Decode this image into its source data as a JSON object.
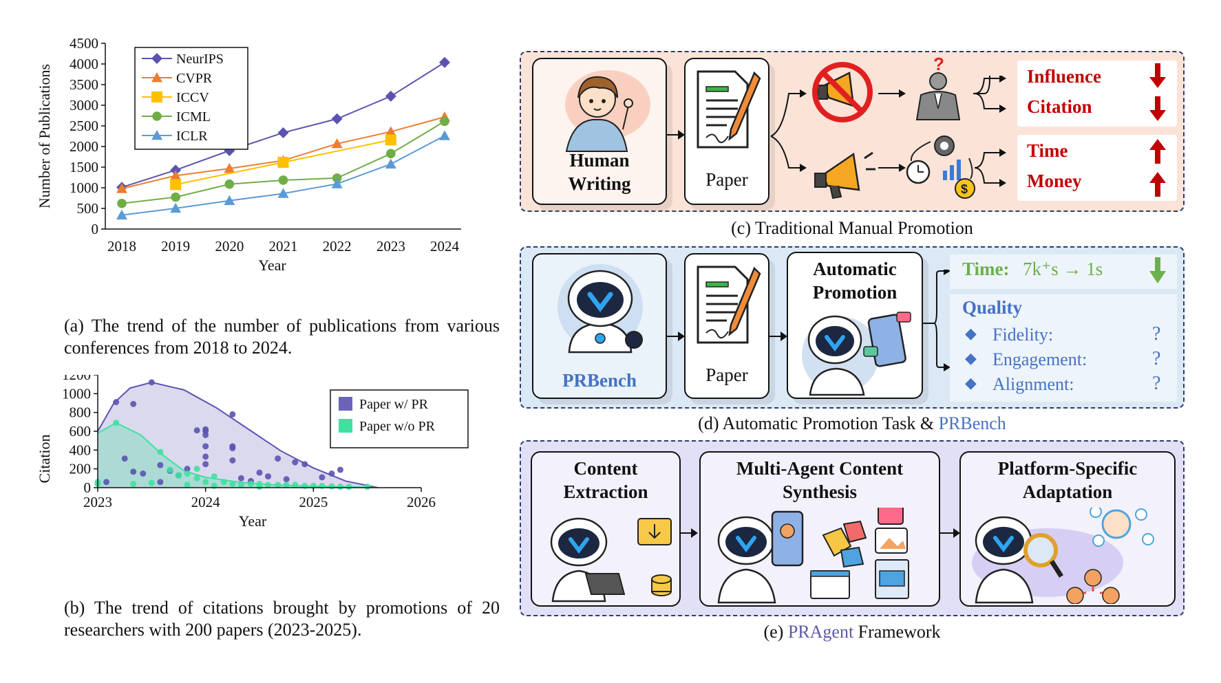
{
  "chart_a": {
    "chart_data": {
      "type": "line",
      "categories": [
        "2018",
        "2019",
        "2020",
        "2021",
        "2022",
        "2023",
        "2024"
      ],
      "ylabel": "Number of Publications",
      "xlabel": "Year",
      "ylim": [
        0,
        4500
      ],
      "yticks": [
        0,
        500,
        1000,
        1500,
        2000,
        2500,
        3000,
        3500,
        4000,
        4500
      ],
      "legend_position": "top-left",
      "series": [
        {
          "name": "NeurIPS",
          "color": "#5b53b0",
          "marker": "diamond",
          "values": [
            1011,
            1428,
            1900,
            2334,
            2671,
            3218,
            4037
          ]
        },
        {
          "name": "CVPR",
          "color": "#ed7d31",
          "marker": "triangle",
          "values": [
            979,
            1294,
            1467,
            1660,
            2067,
            2359,
            2716
          ]
        },
        {
          "name": "ICCV",
          "color": "#ffc000",
          "marker": "square",
          "values": [
            null,
            1077,
            null,
            1617,
            null,
            2160,
            null
          ]
        },
        {
          "name": "ICML",
          "color": "#70ad47",
          "marker": "circle",
          "values": [
            621,
            773,
            1088,
            1184,
            1235,
            1828,
            2610
          ]
        },
        {
          "name": "ICLR",
          "color": "#5b9bd5",
          "marker": "triangle",
          "values": [
            337,
            502,
            687,
            860,
            1095,
            1574,
            2260
          ]
        }
      ]
    },
    "caption": "(a) The trend of the number of publications from various conferences from 2018 to 2024."
  },
  "chart_b": {
    "chart_data": {
      "type": "scatter",
      "xlabel": "Year",
      "ylabel": "Citation",
      "xticks": [
        "2023",
        "2024",
        "2025",
        "2026"
      ],
      "xlim": [
        2023,
        2026
      ],
      "ylim": [
        0,
        1200
      ],
      "yticks": [
        0,
        200,
        400,
        600,
        800,
        1000,
        1200
      ],
      "legend_position": "top-right",
      "series": [
        {
          "name": "Paper w/ PR",
          "color": "#5b53b0",
          "envelope": [
            [
              2023.0,
              600
            ],
            [
              2023.15,
              900
            ],
            [
              2023.3,
              1060
            ],
            [
              2023.5,
              1120
            ],
            [
              2023.8,
              1040
            ],
            [
              2024.1,
              850
            ],
            [
              2024.4,
              620
            ],
            [
              2024.7,
              390
            ],
            [
              2025.0,
              210
            ],
            [
              2025.3,
              70
            ],
            [
              2025.6,
              0
            ]
          ],
          "points": [
            [
              2023.17,
              910
            ],
            [
              2023.33,
              890
            ],
            [
              2023.5,
              1120
            ],
            [
              2023.25,
              310
            ],
            [
              2023.33,
              170
            ],
            [
              2023.42,
              150
            ],
            [
              2023.58,
              240
            ],
            [
              2023.67,
              180
            ],
            [
              2023.75,
              130
            ],
            [
              2023.83,
              200
            ],
            [
              2023.92,
              610
            ],
            [
              2024.0,
              600
            ],
            [
              2024.0,
              620
            ],
            [
              2024.0,
              560
            ],
            [
              2024.0,
              440
            ],
            [
              2024.0,
              330
            ],
            [
              2024.0,
              250
            ],
            [
              2024.25,
              780
            ],
            [
              2024.25,
              440
            ],
            [
              2024.25,
              420
            ],
            [
              2024.25,
              290
            ],
            [
              2024.67,
              310
            ],
            [
              2024.83,
              270
            ],
            [
              2024.92,
              250
            ],
            [
              2025.25,
              190
            ],
            [
              2025.17,
              150
            ],
            [
              2025.08,
              110
            ],
            [
              2024.5,
              160
            ],
            [
              2024.58,
              120
            ],
            [
              2024.33,
              100
            ],
            [
              2024.75,
              90
            ],
            [
              2023.08,
              60
            ],
            [
              2023.58,
              60
            ],
            [
              2024.42,
              70
            ]
          ]
        },
        {
          "name": "Paper w/o PR",
          "color": "#40e0a0",
          "envelope": [
            [
              2023.0,
              580
            ],
            [
              2023.17,
              690
            ],
            [
              2023.4,
              560
            ],
            [
              2023.6,
              350
            ],
            [
              2023.8,
              180
            ],
            [
              2024.0,
              110
            ],
            [
              2024.3,
              60
            ],
            [
              2024.6,
              30
            ],
            [
              2025.0,
              15
            ],
            [
              2025.5,
              5
            ],
            [
              2025.6,
              0
            ]
          ],
          "points": [
            [
              2023.0,
              60
            ],
            [
              2023.0,
              40
            ],
            [
              2023.17,
              690
            ],
            [
              2023.58,
              380
            ],
            [
              2023.67,
              190
            ],
            [
              2023.75,
              130
            ],
            [
              2023.83,
              150
            ],
            [
              2023.92,
              200
            ],
            [
              2023.92,
              100
            ],
            [
              2024.0,
              60
            ],
            [
              2024.08,
              120
            ],
            [
              2024.17,
              60
            ],
            [
              2024.25,
              40
            ],
            [
              2024.33,
              30
            ],
            [
              2024.42,
              40
            ],
            [
              2024.5,
              40
            ],
            [
              2024.58,
              30
            ],
            [
              2024.67,
              30
            ],
            [
              2024.75,
              30
            ],
            [
              2024.83,
              30
            ],
            [
              2024.92,
              20
            ],
            [
              2025.0,
              20
            ],
            [
              2025.08,
              20
            ],
            [
              2025.17,
              15
            ],
            [
              2025.25,
              10
            ],
            [
              2025.33,
              10
            ],
            [
              2025.5,
              10
            ],
            [
              2023.5,
              50
            ],
            [
              2023.33,
              40
            ],
            [
              2023.83,
              30
            ],
            [
              2024.08,
              20
            ],
            [
              2024.5,
              10
            ]
          ]
        }
      ]
    },
    "caption": "(b) The trend of citations brought by promotions of 20 researchers with 200 papers (2023-2025)."
  },
  "panel_c": {
    "human_line1": "Human",
    "human_line2": "Writing",
    "paper": "Paper",
    "influence": "Influence",
    "citation": "Citation",
    "time": "Time",
    "money": "Money",
    "caption": "(c) Traditional Manual Promotion"
  },
  "panel_d": {
    "prbench": "PRBench",
    "paper": "Paper",
    "auto_line1": "Automatic",
    "auto_line2": "Promotion",
    "time_label": "Time:",
    "time_value": "7k⁺s → 1s",
    "quality": "Quality",
    "fidelity": "Fidelity:",
    "engagement": "Engagement:",
    "alignment": "Alignment:",
    "qmark": "?",
    "caption_prefix": "(d) Automatic Promotion Task & ",
    "caption_highlight": "PRBench"
  },
  "panel_e": {
    "content_line1": "Content",
    "content_line2": "Extraction",
    "multi_line1": "Multi-Agent Content",
    "multi_line2": "Synthesis",
    "platform_line1": "Platform-Specific",
    "platform_line2": "Adaptation",
    "caption_prefix": "(e) ",
    "caption_highlight": "PRAgent",
    "caption_suffix": " Framework"
  }
}
